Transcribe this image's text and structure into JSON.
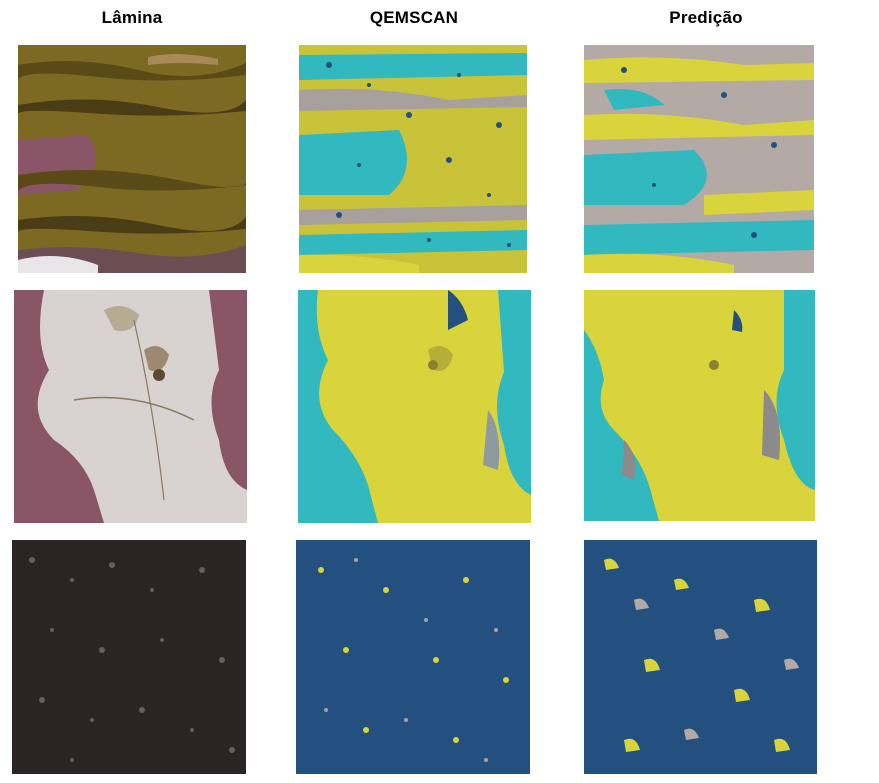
{
  "headers": {
    "col1": "Lâmina",
    "col2": "QEMSCAN",
    "col3": "Predição"
  },
  "palette": {
    "olive": "#7d6a22",
    "mauve": "#8a5566",
    "pale_gray": "#d8d3d0",
    "teal": "#32b9c0",
    "yellow": "#d9d43c",
    "blue": "#23507e",
    "gray_mineral": "#a8a09c",
    "dark_grain": "#2b2424"
  },
  "rows": [
    {
      "lamina": "thin-section-laminated",
      "qemscan": "qemscan-map-laminated",
      "predicao": "prediction-map-laminated"
    },
    {
      "lamina": "thin-section-crystal",
      "qemscan": "qemscan-map-crystal",
      "predicao": "prediction-map-crystal"
    },
    {
      "lamina": "thin-section-granular",
      "qemscan": "qemscan-map-granular",
      "predicao": "prediction-map-granular"
    }
  ]
}
